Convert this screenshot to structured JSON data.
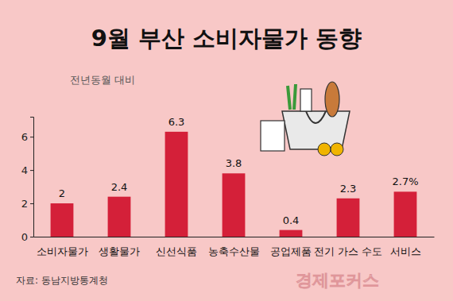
{
  "chart_data": {
    "type": "bar",
    "title": "9월 부산 소비자물가 동향",
    "subtitle": "전년동월 대비",
    "categories": [
      "소비자물가",
      "생활물가",
      "신선식품",
      "농축수산물",
      "공업제품",
      "전기 가스 수도",
      "서비스"
    ],
    "values": [
      2,
      2.4,
      6.3,
      3.8,
      0.4,
      2.3,
      2.7
    ],
    "value_labels": [
      "2",
      "2.4",
      "6.3",
      "3.8",
      "0.4",
      "2.3",
      "2.7%"
    ],
    "data_labels": true,
    "color": "#d42039",
    "ylim": [
      0,
      7.2
    ],
    "yticks": [
      0,
      2,
      4,
      6
    ],
    "grid": false,
    "annotations": [
      "자료: 동남지방통계청",
      "경제포커스"
    ]
  }
}
